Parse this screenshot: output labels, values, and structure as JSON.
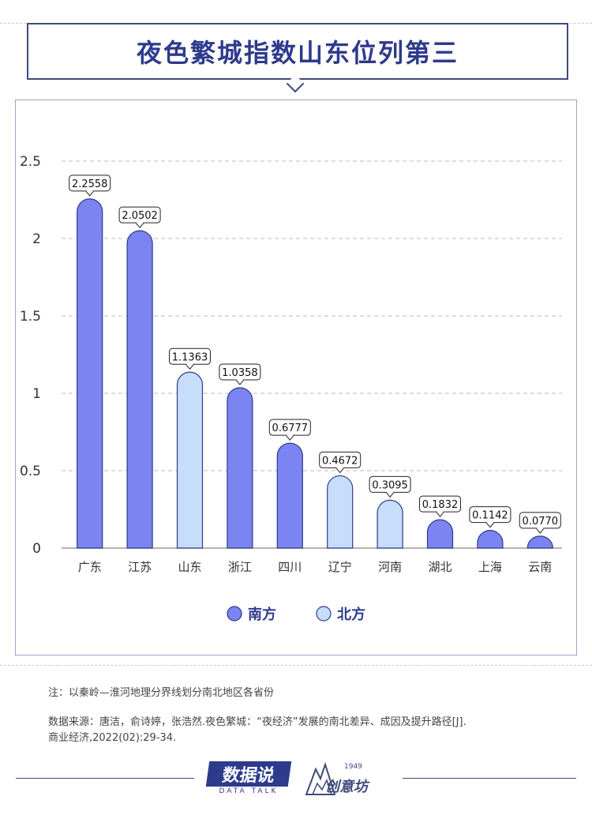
{
  "title": "夜色繁城指数山东位列第三",
  "chart_data": {
    "type": "bar",
    "categories": [
      "广东",
      "江苏",
      "山东",
      "浙江",
      "四川",
      "辽宁",
      "河南",
      "湖北",
      "上海",
      "云南"
    ],
    "values": [
      2.2558,
      2.0502,
      1.1363,
      1.0358,
      0.6777,
      0.4672,
      0.3095,
      0.1832,
      0.1142,
      0.077
    ],
    "value_labels": [
      "2.2558",
      "2.0502",
      "1.1363",
      "1.0358",
      "0.6777",
      "0.4672",
      "0.3095",
      "0.1832",
      "0.1142",
      "0.0770"
    ],
    "groups": [
      "南方",
      "南方",
      "北方",
      "南方",
      "南方",
      "北方",
      "北方",
      "南方",
      "南方",
      "南方"
    ],
    "yticks": [
      "0",
      "0.5",
      "1",
      "1.5",
      "2",
      "2.5"
    ],
    "ylim": [
      0,
      2.5
    ],
    "grid": "dashed horizontal",
    "legend": [
      {
        "name": "南方",
        "color": "#7b84f0"
      },
      {
        "name": "北方",
        "color": "#c6defa"
      }
    ],
    "legend_placement": "bottom-center"
  },
  "notes": {
    "note_line": "注：以秦岭—淮河地理分界线划分南北地区各省份",
    "source_line1": "数据来源：唐洁，俞诗婷，张浩然.夜色繁城：“夜经济”发展的南北差异、成因及提升路径[J].",
    "source_line2": "商业经济,2022(02):29-34."
  },
  "logos": {
    "data_talk_main": "数据说",
    "data_talk_sub": "DATA TALK",
    "chuangyi_text": "创意坊",
    "chuangyi_year": "1949"
  }
}
